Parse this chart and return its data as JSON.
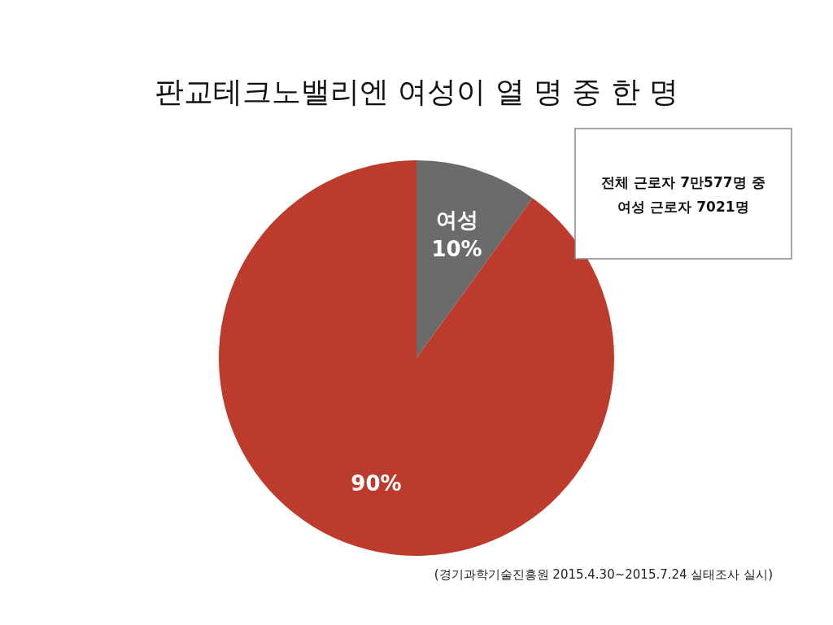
{
  "chart_data": {
    "type": "pie",
    "title": "판교테크노밸리엔 여성이 열 명 중 한 명",
    "categories": [
      "여성",
      null
    ],
    "values": [
      10,
      90
    ],
    "colors": [
      "#6b6b6b",
      "#bd3b2c"
    ],
    "value_labels": [
      "10%",
      "90%"
    ],
    "annotations": [
      "전체 근로자 7만577명 중\n여성 근로자 7021명",
      "(경기과학기술진흥원 2015.4.30~2015.7.24 실태조사 실시)"
    ]
  }
}
